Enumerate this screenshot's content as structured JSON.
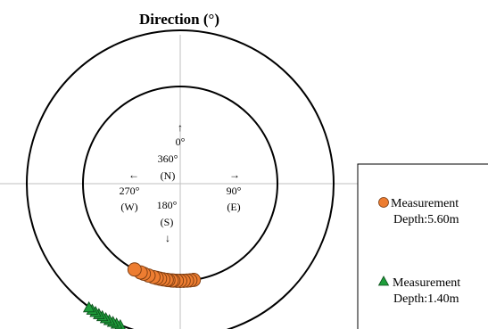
{
  "chart_data": {
    "type": "scatter",
    "title": "Direction (°)",
    "polar": true,
    "compass_labels": {
      "north_arrow": "↑",
      "north_deg": "0°",
      "north_deg_alt": "360°",
      "north": "(N)",
      "west_arrow": "←",
      "west_deg": "270°",
      "west": "(W)",
      "east_arrow": "→",
      "east_deg": "90°",
      "east": "(E)",
      "south_deg": "180°",
      "south": "(S)",
      "south_arrow": "↓"
    },
    "series": [
      {
        "name": "Measurement Depth:5.60m",
        "legend_line1": "Measurement",
        "legend_line2": "Depth:5.60m",
        "marker": "circle",
        "color": "#ED7D31",
        "ring": "inner",
        "angles_deg": [
          172,
          174,
          176,
          178,
          180,
          182,
          184,
          185,
          187,
          188,
          190,
          192,
          194,
          196,
          199,
          202,
          204,
          208
        ]
      },
      {
        "name": "Measurement Depth:1.40m",
        "legend_line1": "Measurement",
        "legend_line2": "Depth:1.40m",
        "marker": "triangle",
        "color": "#1E9E3B",
        "ring": "outer",
        "angles_deg": [
          203,
          204.5,
          206,
          207.5,
          209,
          210.5,
          212,
          213.5,
          215,
          216.5
        ]
      }
    ]
  }
}
